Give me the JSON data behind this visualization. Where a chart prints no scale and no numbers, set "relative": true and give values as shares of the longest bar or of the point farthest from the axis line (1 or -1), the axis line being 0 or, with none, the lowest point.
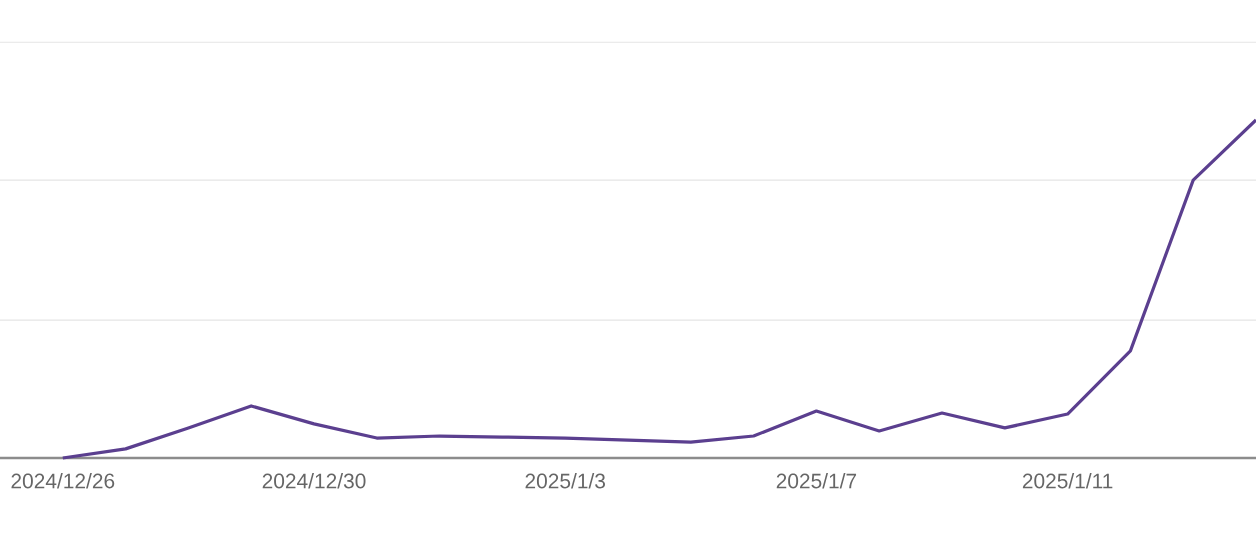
{
  "chart_data": {
    "type": "line",
    "relative": true,
    "x": [
      "2024-12-26",
      "2024-12-27",
      "2024-12-28",
      "2024-12-29",
      "2024-12-30",
      "2024-12-31",
      "2025-01-01",
      "2025-01-02",
      "2025-01-03",
      "2025-01-04",
      "2025-01-05",
      "2025-01-06",
      "2025-01-07",
      "2025-01-08",
      "2025-01-09",
      "2025-01-10",
      "2025-01-11",
      "2025-01-12",
      "2025-01-13",
      "2025-01-14"
    ],
    "series": [
      {
        "color": "#5b3f8f",
        "values": [
          0,
          0.027,
          0.089,
          0.154,
          0.101,
          0.059,
          0.065,
          0.062,
          0.059,
          0.053,
          0.047,
          0.065,
          0.139,
          0.08,
          0.133,
          0.089,
          0.13,
          0.317,
          0.822,
          1
        ]
      }
    ],
    "xlim": [
      "2024-12-25",
      "2025-01-14"
    ],
    "xticks": [
      {
        "value": "2024-12-26",
        "label": "2024/12/26"
      },
      {
        "value": "2024-12-30",
        "label": "2024/12/30"
      },
      {
        "value": "2025-01-03",
        "label": "2025/1/3"
      },
      {
        "value": "2025-01-07",
        "label": "2025/1/7"
      },
      {
        "value": "2025-01-11",
        "label": "2025/1/11"
      }
    ],
    "ref_lines": [
      {
        "axis": "y",
        "value": 0.408,
        "color": "#e5e5e5"
      },
      {
        "axis": "y",
        "value": 0.822,
        "color": "#e5e5e5"
      },
      {
        "axis": "y",
        "value": 1.23,
        "color": "#e5e5e5"
      }
    ],
    "marker": "none",
    "line_style": "solid"
  }
}
